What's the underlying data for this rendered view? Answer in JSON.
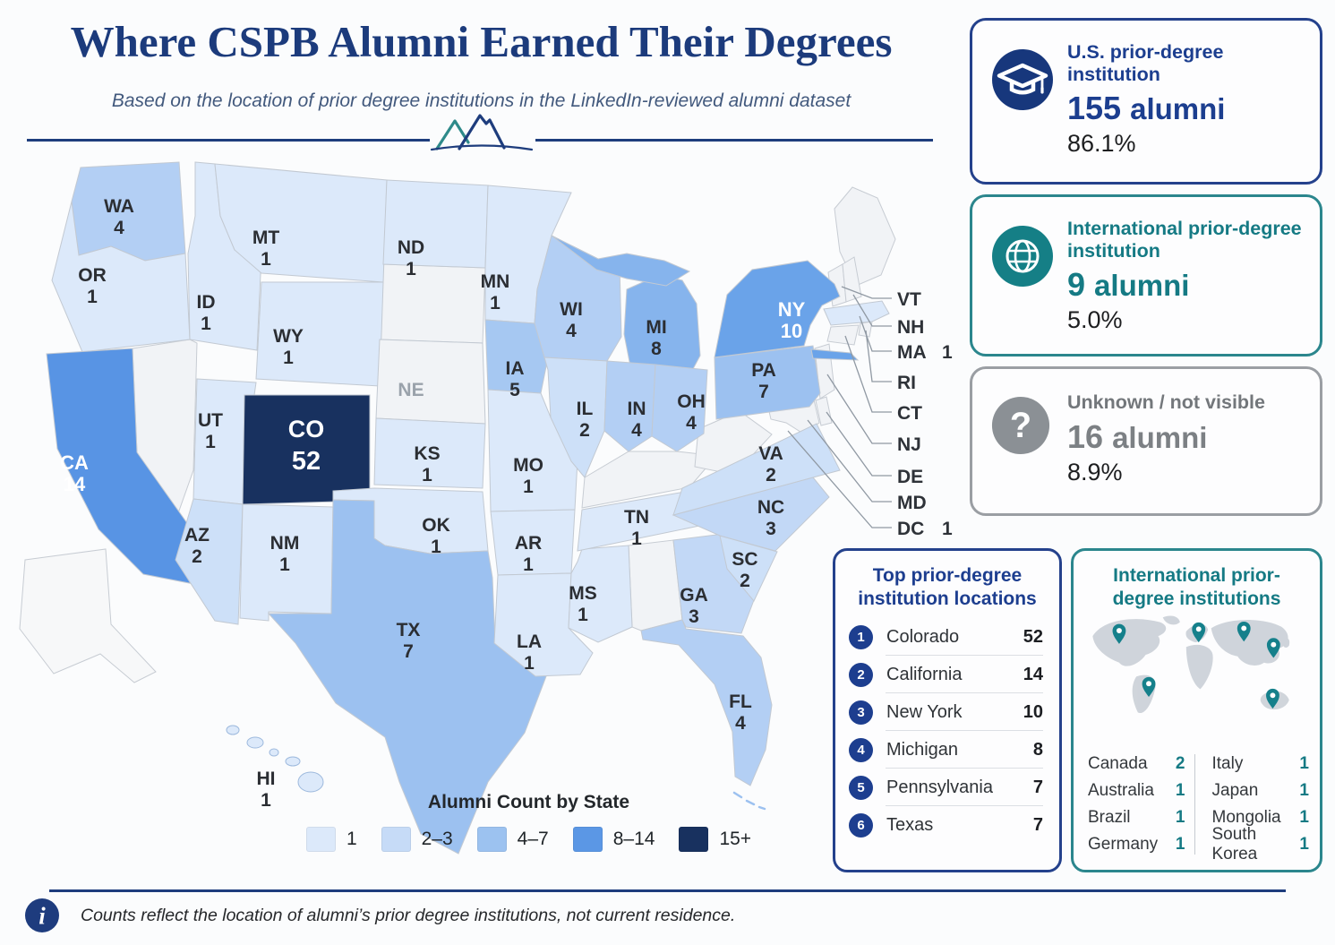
{
  "page": {
    "title": "Where CSPB Alumni Earned Their Degrees",
    "subtitle": "Based on the location of prior degree institutions in the LinkedIn-reviewed alumni dataset",
    "footer_note": "Counts reflect the location of alumni’s prior degree institutions, not current residence."
  },
  "stat_cards": [
    {
      "label_line1": "U.S. prior-degree",
      "label_line2": "institution",
      "value": "155",
      "unit": "alumni",
      "pct": "86.1%",
      "icon": "graduation-cap-icon",
      "color": "#1c3e8f"
    },
    {
      "label_line1": "International prior-degree",
      "label_line2": "institution",
      "value": "9",
      "unit": "alumni",
      "pct": "5.0%",
      "icon": "globe-icon",
      "color": "#157a84"
    },
    {
      "label_line1": "Unknown / not visible",
      "label_line2": "",
      "value": "16",
      "unit": "alumni",
      "pct": "8.9%",
      "icon": "question-mark-icon",
      "color": "#7c8084"
    }
  ],
  "top_locations": {
    "title_line1": "Top prior-degree",
    "title_line2": "institution locations",
    "rows": [
      {
        "rank": "1",
        "name": "Colorado",
        "count": "52"
      },
      {
        "rank": "2",
        "name": "California",
        "count": "14"
      },
      {
        "rank": "3",
        "name": "New York",
        "count": "10"
      },
      {
        "rank": "4",
        "name": "Michigan",
        "count": "8"
      },
      {
        "rank": "5",
        "name": "Pennsylvania",
        "count": "7"
      },
      {
        "rank": "6",
        "name": "Texas",
        "count": "7"
      }
    ]
  },
  "international": {
    "title_line1": "International prior-",
    "title_line2": "degree institutions",
    "countries_left": [
      {
        "name": "Canada",
        "count": "2"
      },
      {
        "name": "Australia",
        "count": "1"
      },
      {
        "name": "Brazil",
        "count": "1"
      },
      {
        "name": "Germany",
        "count": "1"
      }
    ],
    "countries_right": [
      {
        "name": "Italy",
        "count": "1"
      },
      {
        "name": "Japan",
        "count": "1"
      },
      {
        "name": "Mongolia",
        "count": "1"
      },
      {
        "name": "South Korea",
        "count": "1"
      }
    ],
    "pin_locations": [
      "canada",
      "europe",
      "mongolia",
      "japan",
      "brazil",
      "australia"
    ]
  },
  "legend": {
    "title": "Alumni Count by State",
    "bins": [
      {
        "label": "1",
        "color": "#dce9fa"
      },
      {
        "label": "2–3",
        "color": "#c6dbf7"
      },
      {
        "label": "4–7",
        "color": "#9cc2f0"
      },
      {
        "label": "8–14",
        "color": "#5b97e5"
      },
      {
        "label": "15+",
        "color": "#18315f"
      }
    ]
  },
  "chart_data": {
    "type": "choropleth",
    "region": "United States",
    "title": "Alumni Count by State",
    "states": [
      {
        "abbr": "WA",
        "count": 4
      },
      {
        "abbr": "OR",
        "count": 1
      },
      {
        "abbr": "CA",
        "count": 14
      },
      {
        "abbr": "ID",
        "count": 1
      },
      {
        "abbr": "MT",
        "count": 1
      },
      {
        "abbr": "WY",
        "count": 1
      },
      {
        "abbr": "UT",
        "count": 1
      },
      {
        "abbr": "CO",
        "count": 52
      },
      {
        "abbr": "AZ",
        "count": 2
      },
      {
        "abbr": "NM",
        "count": 1
      },
      {
        "abbr": "ND",
        "count": 1
      },
      {
        "abbr": "NE",
        "count": null
      },
      {
        "abbr": "KS",
        "count": 1
      },
      {
        "abbr": "OK",
        "count": 1
      },
      {
        "abbr": "TX",
        "count": 7
      },
      {
        "abbr": "MN",
        "count": 1
      },
      {
        "abbr": "IA",
        "count": 5
      },
      {
        "abbr": "MO",
        "count": 1
      },
      {
        "abbr": "AR",
        "count": 1
      },
      {
        "abbr": "LA",
        "count": 1
      },
      {
        "abbr": "WI",
        "count": 4
      },
      {
        "abbr": "IL",
        "count": 2
      },
      {
        "abbr": "MS",
        "count": 1
      },
      {
        "abbr": "MI",
        "count": 8
      },
      {
        "abbr": "IN",
        "count": 4
      },
      {
        "abbr": "OH",
        "count": 4
      },
      {
        "abbr": "TN",
        "count": 1
      },
      {
        "abbr": "GA",
        "count": 3
      },
      {
        "abbr": "SC",
        "count": 2
      },
      {
        "abbr": "NC",
        "count": 3
      },
      {
        "abbr": "VA",
        "count": 2
      },
      {
        "abbr": "FL",
        "count": 4
      },
      {
        "abbr": "PA",
        "count": 7
      },
      {
        "abbr": "NY",
        "count": 10
      },
      {
        "abbr": "HI",
        "count": 1
      },
      {
        "abbr": "MA",
        "count": 1
      },
      {
        "abbr": "DC",
        "count": 1
      }
    ],
    "callout_states": [
      "VT",
      "NH",
      "MA",
      "RI",
      "CT",
      "NJ",
      "DE",
      "MD",
      "DC"
    ],
    "totals": {
      "us_alumni": 155,
      "us_pct": "86.1%",
      "international_alumni": 9,
      "international_pct": "5.0%",
      "unknown_alumni": 16,
      "unknown_pct": "8.9%"
    }
  }
}
